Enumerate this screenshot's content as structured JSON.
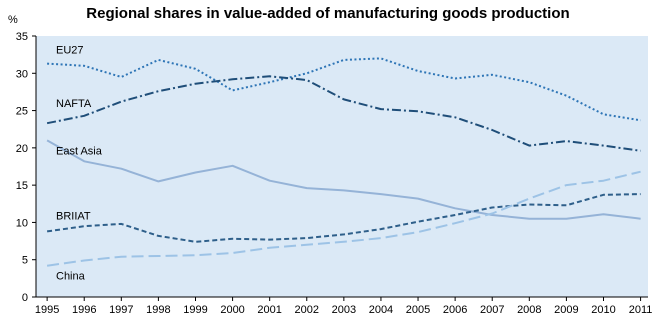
{
  "chart_data": {
    "type": "line",
    "title": "Regional shares in value-added of manufacturing goods production",
    "ylabel": "%",
    "xlabel": "",
    "ylim": [
      0,
      35
    ],
    "y_ticks": [
      0,
      5,
      10,
      15,
      20,
      25,
      30,
      35
    ],
    "x": [
      "1995",
      "1996",
      "1997",
      "1998",
      "1999",
      "2000",
      "2001",
      "2002",
      "2003",
      "2004",
      "2005",
      "2006",
      "2007",
      "2008",
      "2009",
      "2010",
      "2011"
    ],
    "grid": false,
    "background_color": "#dbe9f6",
    "series": [
      {
        "name": "EU27",
        "color": "#2e75b6",
        "dash": "dotted",
        "values": [
          31.3,
          31.0,
          29.5,
          31.8,
          30.6,
          27.7,
          28.8,
          30.0,
          31.8,
          32.0,
          30.3,
          29.3,
          29.8,
          28.8,
          27.0,
          24.5,
          23.7
        ]
      },
      {
        "name": "NAFTA",
        "color": "#1f4e79",
        "dash": "dashdot",
        "values": [
          23.3,
          24.3,
          26.2,
          27.6,
          28.6,
          29.2,
          29.6,
          29.1,
          26.5,
          25.2,
          24.9,
          24.1,
          22.4,
          20.3,
          20.9,
          20.3,
          19.6
        ]
      },
      {
        "name": "East Asia",
        "color": "#95b3d7",
        "dash": "solid",
        "values": [
          21.0,
          18.2,
          17.2,
          15.5,
          16.7,
          17.6,
          15.6,
          14.6,
          14.3,
          13.8,
          13.2,
          11.9,
          11.0,
          10.5,
          10.5,
          11.1,
          10.5
        ]
      },
      {
        "name": "BRIIAT",
        "color": "#2e5f8a",
        "dash": "dashed",
        "values": [
          8.8,
          9.5,
          9.8,
          8.2,
          7.4,
          7.8,
          7.7,
          7.9,
          8.4,
          9.1,
          10.1,
          11.0,
          12.0,
          12.4,
          12.3,
          13.7,
          13.8
        ]
      },
      {
        "name": "China",
        "color": "#9dc3e6",
        "dash": "longdash",
        "values": [
          4.2,
          4.9,
          5.4,
          5.5,
          5.6,
          5.9,
          6.6,
          7.0,
          7.4,
          7.9,
          8.7,
          9.9,
          11.2,
          13.2,
          15.0,
          15.6,
          16.8
        ]
      }
    ]
  }
}
